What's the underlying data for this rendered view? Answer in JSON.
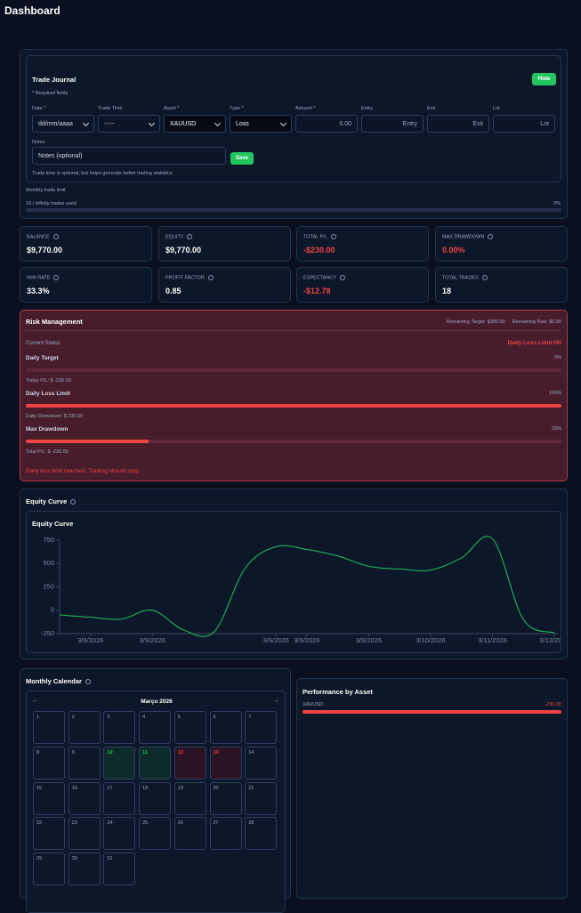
{
  "header": {
    "title": "Dashboard"
  },
  "trade_journal": {
    "title": "Trade Journal",
    "hide_button": "Hide",
    "required_note": "* Required fields",
    "fields": [
      {
        "label": "Date *",
        "value": "dd/mm/aaaa"
      },
      {
        "label": "Trade Time",
        "value": "--:--"
      },
      {
        "label": "Asset *",
        "value": "XAUUSD"
      },
      {
        "label": "Type *",
        "value": "Loss"
      },
      {
        "label": "Amount *",
        "value": "0.00"
      },
      {
        "label": "Entry",
        "value": "Entry"
      },
      {
        "label": "Exit",
        "value": "Exit"
      },
      {
        "label": "Lot",
        "value": "Lot"
      }
    ],
    "notes_label": "Notes",
    "notes_placeholder": "Notes (optional)",
    "save_button": "Save",
    "hint": "Trade time is optional, but helps generate better trading statistics.",
    "limit_title": "Monthly trade limit",
    "limit_used": "18 / Infinity trades used",
    "limit_percent": {
      "value": 0,
      "label": "0%"
    }
  },
  "stats": [
    {
      "label": "BALANCE",
      "value": "$9,770.00",
      "color": "#ffffff"
    },
    {
      "label": "EQUITY",
      "value": "$9,770.00",
      "color": "#ffffff"
    },
    {
      "label": "TOTAL P/L",
      "value": "-$230.00",
      "color": "#ef4444"
    },
    {
      "label": "MAX DRAWDOWN",
      "value": "0.00%",
      "color": "#ef4444"
    },
    {
      "label": "WIN RATE",
      "value": "33.3%",
      "color": "#ffffff"
    },
    {
      "label": "PROFIT FACTOR",
      "value": "0.85",
      "color": "#ffffff"
    },
    {
      "label": "EXPECTANCY",
      "value": "-$12.78",
      "color": "#ef4444"
    },
    {
      "label": "TOTAL TRADES",
      "value": "18",
      "color": "#ffffff"
    }
  ],
  "risk": {
    "title": "Risk Management",
    "remaining_target": "Remaining Target: $300.00",
    "remaining_risk": "Remaining Risk: $0.00",
    "status_label": "Current Status",
    "status_value": "Daily Loss Limit Hit",
    "bars": [
      {
        "label": "Daily Target",
        "percent": {
          "value": 0,
          "label": "0%"
        },
        "note": "Today P/L: $ -230.00"
      },
      {
        "label": "Daily Loss Limit",
        "percent": {
          "value": 100,
          "label": "100%"
        },
        "note": "Daily Drawdown: $ 230.00"
      },
      {
        "label": "Max Drawdown",
        "percent": {
          "value": 23,
          "label": "23%"
        },
        "note": "Total P/L: $ -230.00"
      }
    ],
    "warning": "Daily loss limit reached. Trading should stop."
  },
  "equity_curve": {
    "title": "Equity Curve",
    "chart": {
      "type": "line",
      "title": "Equity Curve",
      "color": "#22c55e",
      "categories": [
        null,
        "3/9/2026",
        null,
        "3/9/2026",
        null,
        null,
        null,
        "3/9/2026",
        "3/9/2026",
        null,
        "3/9/2026",
        null,
        "3/10/2026",
        null,
        "3/11/2026",
        null,
        "3/12/2026"
      ],
      "values": [
        -50,
        -75,
        -95,
        0,
        -210,
        -230,
        450,
        680,
        650,
        580,
        470,
        440,
        430,
        560,
        765,
        -100,
        -240
      ],
      "ylim": [
        -250,
        750
      ],
      "yticks": [
        750,
        500,
        250,
        0,
        -250
      ]
    }
  },
  "calendar": {
    "title": "Monthly Calendar",
    "month": "Março 2026",
    "nav_prev": "←",
    "nav_next": "→",
    "days": [
      {
        "day": 1
      },
      {
        "day": 2
      },
      {
        "day": 3
      },
      {
        "day": 4
      },
      {
        "day": 5
      },
      {
        "day": 6
      },
      {
        "day": 7
      },
      {
        "day": 8
      },
      {
        "day": 9
      },
      {
        "day": 10,
        "color": "#22c55e"
      },
      {
        "day": 11,
        "color": "#22c55e"
      },
      {
        "day": 12,
        "color": "#ef4444"
      },
      {
        "day": 13,
        "color": "#ef4444"
      },
      {
        "day": 14
      },
      {
        "day": 15
      },
      {
        "day": 16
      },
      {
        "day": 17
      },
      {
        "day": 18
      },
      {
        "day": 19
      },
      {
        "day": 20
      },
      {
        "day": 21
      },
      {
        "day": 22
      },
      {
        "day": 23
      },
      {
        "day": 24
      },
      {
        "day": 25
      },
      {
        "day": 26
      },
      {
        "day": 27
      },
      {
        "day": 28
      },
      {
        "day": 29
      },
      {
        "day": 30
      },
      {
        "day": 31
      }
    ]
  },
  "performance": {
    "title": "Performance by Asset",
    "assets": [
      {
        "name": "XAUUSD",
        "value": "-230.00",
        "percent": {
          "value": 100
        }
      }
    ]
  }
}
